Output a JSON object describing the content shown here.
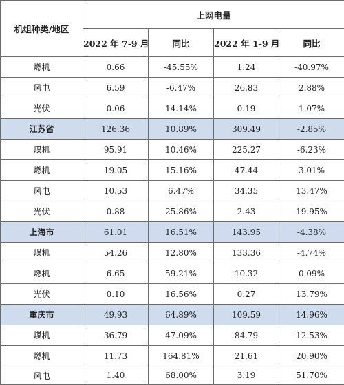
{
  "header": {
    "row_label": "机组种类/地区",
    "group_title": "上网电量",
    "columns": [
      "2022 年 7-9 月",
      "同比",
      "2022 年 1-9 月",
      "同比"
    ]
  },
  "rows": [
    {
      "type": "data",
      "label": "燃机",
      "values": [
        "0.66",
        "-45.55%",
        "1.24",
        "-40.97%"
      ]
    },
    {
      "type": "data",
      "label": "风电",
      "values": [
        "6.59",
        "-6.47%",
        "26.83",
        "2.88%"
      ]
    },
    {
      "type": "data",
      "label": "光伏",
      "values": [
        "0.06",
        "14.14%",
        "0.19",
        "1.07%"
      ]
    },
    {
      "type": "region",
      "label": "江苏省",
      "values": [
        "126.36",
        "10.89%",
        "309.49",
        "-2.85%"
      ]
    },
    {
      "type": "data",
      "label": "煤机",
      "values": [
        "95.91",
        "10.46%",
        "225.27",
        "-6.23%"
      ]
    },
    {
      "type": "data",
      "label": "燃机",
      "values": [
        "19.05",
        "15.16%",
        "47.44",
        "3.01%"
      ]
    },
    {
      "type": "data",
      "label": "风电",
      "values": [
        "10.53",
        "6.47%",
        "34.35",
        "13.47%"
      ]
    },
    {
      "type": "data",
      "label": "光伏",
      "values": [
        "0.88",
        "25.86%",
        "2.43",
        "19.95%"
      ]
    },
    {
      "type": "region",
      "label": "上海市",
      "values": [
        "61.01",
        "16.51%",
        "143.95",
        "-4.38%"
      ]
    },
    {
      "type": "data",
      "label": "煤机",
      "values": [
        "54.26",
        "12.80%",
        "133.36",
        "-4.74%"
      ]
    },
    {
      "type": "data",
      "label": "燃机",
      "values": [
        "6.65",
        "59.21%",
        "10.32",
        "0.09%"
      ]
    },
    {
      "type": "data",
      "label": "光伏",
      "values": [
        "0.10",
        "16.56%",
        "0.27",
        "13.79%"
      ]
    },
    {
      "type": "region",
      "label": "重庆市",
      "values": [
        "49.93",
        "64.89%",
        "109.59",
        "14.96%"
      ]
    },
    {
      "type": "data",
      "label": "煤机",
      "values": [
        "36.79",
        "47.09%",
        "84.79",
        "12.53%"
      ]
    },
    {
      "type": "data",
      "label": "燃机",
      "values": [
        "11.73",
        "164.81%",
        "21.61",
        "20.90%"
      ]
    },
    {
      "type": "cut",
      "label": "风电",
      "values": [
        "1.40",
        "68.00%",
        "3.19",
        "51.70%"
      ]
    }
  ],
  "colors": {
    "region_fill": "#cfdcee",
    "border": "#6d6d6d"
  }
}
